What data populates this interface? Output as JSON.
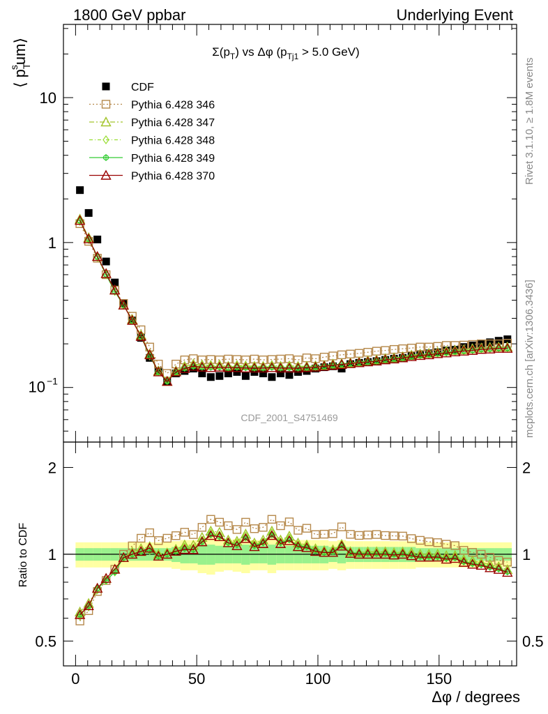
{
  "header": {
    "left": "1800 GeV ppbar",
    "right": "Underlying Event"
  },
  "side_labels": {
    "rivet": "Rivet 3.1.10, ≥ 1.8M events",
    "mcplots": "mcplots.cern.ch [arXiv:1306.3436]"
  },
  "watermark": "CDF_2001_S4751469",
  "chart_data": [
    {
      "type": "scatter",
      "title": "Σ(p_T) vs Δφ (p_Tj1 > 5.0 GeV)",
      "ylabel": "⟨ p_T^s um⟩",
      "yscale": "log",
      "ylim": [
        0.042,
        32
      ],
      "xlim": [
        -5,
        182
      ],
      "yticks": [
        {
          "v": 0.1,
          "label": "10^-1"
        },
        {
          "v": 1,
          "label": "1"
        },
        {
          "v": 10,
          "label": "10"
        }
      ],
      "legend_position": "top-left",
      "x": [
        1.8,
        5.4,
        9.0,
        12.6,
        16.2,
        19.8,
        23.4,
        27.0,
        30.6,
        34.2,
        37.8,
        41.4,
        45.0,
        48.6,
        52.2,
        55.8,
        59.4,
        63.0,
        66.6,
        70.2,
        73.8,
        77.4,
        81.0,
        84.6,
        88.2,
        91.8,
        95.4,
        99.0,
        102.6,
        106.2,
        109.8,
        113.4,
        117.0,
        120.6,
        124.2,
        127.8,
        131.4,
        135.0,
        138.6,
        142.2,
        145.8,
        149.4,
        153.0,
        156.6,
        160.2,
        163.8,
        167.4,
        171.0,
        174.6,
        178.2
      ],
      "series": [
        {
          "name": "CDF",
          "color": "#000000",
          "marker": "square-filled",
          "values": [
            2.3,
            1.6,
            1.05,
            0.74,
            0.53,
            0.38,
            0.29,
            0.22,
            0.16,
            0.13,
            0.11,
            0.125,
            0.13,
            0.135,
            0.125,
            0.118,
            0.12,
            0.125,
            0.128,
            0.12,
            0.128,
            0.125,
            0.118,
            0.125,
            0.122,
            0.128,
            0.13,
            0.135,
            0.138,
            0.14,
            0.135,
            0.145,
            0.148,
            0.15,
            0.152,
            0.155,
            0.158,
            0.16,
            0.165,
            0.17,
            0.172,
            0.175,
            0.18,
            0.182,
            0.19,
            0.195,
            0.2,
            0.205,
            0.21,
            0.215
          ]
        },
        {
          "name": "Pythia 6.428 346",
          "color": "#b5884a",
          "marker": "square-open",
          "values": [
            1.35,
            1.02,
            0.78,
            0.6,
            0.47,
            0.38,
            0.31,
            0.25,
            0.19,
            0.145,
            0.125,
            0.145,
            0.155,
            0.158,
            0.155,
            0.156,
            0.155,
            0.157,
            0.156,
            0.155,
            0.157,
            0.155,
            0.156,
            0.157,
            0.158,
            0.155,
            0.16,
            0.158,
            0.162,
            0.165,
            0.168,
            0.17,
            0.172,
            0.175,
            0.178,
            0.18,
            0.183,
            0.185,
            0.187,
            0.19,
            0.19,
            0.192,
            0.195,
            0.195,
            0.196,
            0.198,
            0.2,
            0.2,
            0.2,
            0.202
          ]
        },
        {
          "name": "Pythia 6.428 347",
          "color": "#a2c42a",
          "marker": "triangle-open",
          "values": [
            1.45,
            1.08,
            0.8,
            0.61,
            0.47,
            0.37,
            0.295,
            0.23,
            0.17,
            0.13,
            0.11,
            0.13,
            0.14,
            0.145,
            0.143,
            0.142,
            0.143,
            0.14,
            0.142,
            0.141,
            0.14,
            0.14,
            0.142,
            0.14,
            0.141,
            0.14,
            0.14,
            0.141,
            0.142,
            0.145,
            0.146,
            0.148,
            0.15,
            0.153,
            0.155,
            0.158,
            0.16,
            0.163,
            0.167,
            0.17,
            0.172,
            0.175,
            0.178,
            0.18,
            0.182,
            0.185,
            0.187,
            0.189,
            0.19,
            0.19
          ]
        },
        {
          "name": "Pythia 6.428 348",
          "color": "#99dd33",
          "marker": "diamond-open",
          "values": [
            1.4,
            1.05,
            0.79,
            0.6,
            0.46,
            0.37,
            0.29,
            0.225,
            0.165,
            0.13,
            0.112,
            0.13,
            0.138,
            0.142,
            0.14,
            0.14,
            0.14,
            0.138,
            0.14,
            0.139,
            0.138,
            0.138,
            0.14,
            0.138,
            0.139,
            0.138,
            0.139,
            0.14,
            0.141,
            0.144,
            0.145,
            0.147,
            0.15,
            0.152,
            0.154,
            0.157,
            0.16,
            0.162,
            0.165,
            0.168,
            0.17,
            0.172,
            0.175,
            0.178,
            0.18,
            0.182,
            0.185,
            0.186,
            0.188,
            0.188
          ]
        },
        {
          "name": "Pythia 6.428 349",
          "color": "#33cc33",
          "marker": "circle-cross",
          "values": [
            1.42,
            1.06,
            0.8,
            0.6,
            0.46,
            0.37,
            0.29,
            0.225,
            0.165,
            0.128,
            0.11,
            0.128,
            0.136,
            0.14,
            0.138,
            0.138,
            0.138,
            0.137,
            0.138,
            0.137,
            0.137,
            0.137,
            0.138,
            0.137,
            0.137,
            0.137,
            0.138,
            0.139,
            0.14,
            0.143,
            0.145,
            0.147,
            0.149,
            0.151,
            0.153,
            0.156,
            0.158,
            0.161,
            0.164,
            0.167,
            0.169,
            0.172,
            0.174,
            0.177,
            0.179,
            0.181,
            0.184,
            0.185,
            0.187,
            0.187
          ]
        },
        {
          "name": "Pythia 6.428 370",
          "color": "#990000",
          "marker": "triangle-open",
          "values": [
            1.42,
            1.06,
            0.8,
            0.61,
            0.47,
            0.37,
            0.29,
            0.225,
            0.168,
            0.128,
            0.11,
            0.128,
            0.135,
            0.14,
            0.138,
            0.137,
            0.138,
            0.137,
            0.137,
            0.136,
            0.136,
            0.136,
            0.137,
            0.136,
            0.136,
            0.136,
            0.137,
            0.138,
            0.14,
            0.142,
            0.144,
            0.146,
            0.148,
            0.15,
            0.152,
            0.155,
            0.157,
            0.16,
            0.163,
            0.166,
            0.168,
            0.171,
            0.173,
            0.176,
            0.178,
            0.18,
            0.183,
            0.184,
            0.186,
            0.186
          ]
        }
      ]
    },
    {
      "type": "scatter",
      "ylabel": "Ratio to CDF",
      "xlabel": "Δφ / degrees",
      "yscale": "log",
      "ylim": [
        0.41,
        2.45
      ],
      "xlim": [
        -5,
        182
      ],
      "yticks": [
        {
          "v": 0.5,
          "label": "0.5"
        },
        {
          "v": 1,
          "label": "1"
        },
        {
          "v": 2,
          "label": "2"
        }
      ],
      "xticks": [
        {
          "v": 0,
          "label": "0"
        },
        {
          "v": 50,
          "label": "50"
        },
        {
          "v": 100,
          "label": "100"
        },
        {
          "v": 150,
          "label": "150"
        }
      ],
      "band_inner": [
        0.05,
        0.05,
        0.05,
        0.05,
        0.05,
        0.05,
        0.05,
        0.05,
        0.05,
        0.05,
        0.05,
        0.06,
        0.07,
        0.07,
        0.08,
        0.08,
        0.07,
        0.07,
        0.07,
        0.08,
        0.07,
        0.07,
        0.08,
        0.07,
        0.07,
        0.07,
        0.07,
        0.07,
        0.07,
        0.06,
        0.07,
        0.06,
        0.06,
        0.06,
        0.06,
        0.06,
        0.06,
        0.06,
        0.06,
        0.05,
        0.05,
        0.05,
        0.05,
        0.05,
        0.05,
        0.05,
        0.05,
        0.05,
        0.05,
        0.05
      ],
      "band_outer": [
        0.1,
        0.1,
        0.1,
        0.1,
        0.1,
        0.1,
        0.1,
        0.1,
        0.1,
        0.1,
        0.1,
        0.11,
        0.12,
        0.12,
        0.14,
        0.15,
        0.13,
        0.12,
        0.13,
        0.14,
        0.12,
        0.12,
        0.14,
        0.12,
        0.12,
        0.12,
        0.12,
        0.12,
        0.12,
        0.11,
        0.12,
        0.11,
        0.11,
        0.11,
        0.11,
        0.11,
        0.11,
        0.11,
        0.11,
        0.1,
        0.1,
        0.1,
        0.1,
        0.1,
        0.1,
        0.1,
        0.1,
        0.1,
        0.1,
        0.1
      ]
    }
  ]
}
